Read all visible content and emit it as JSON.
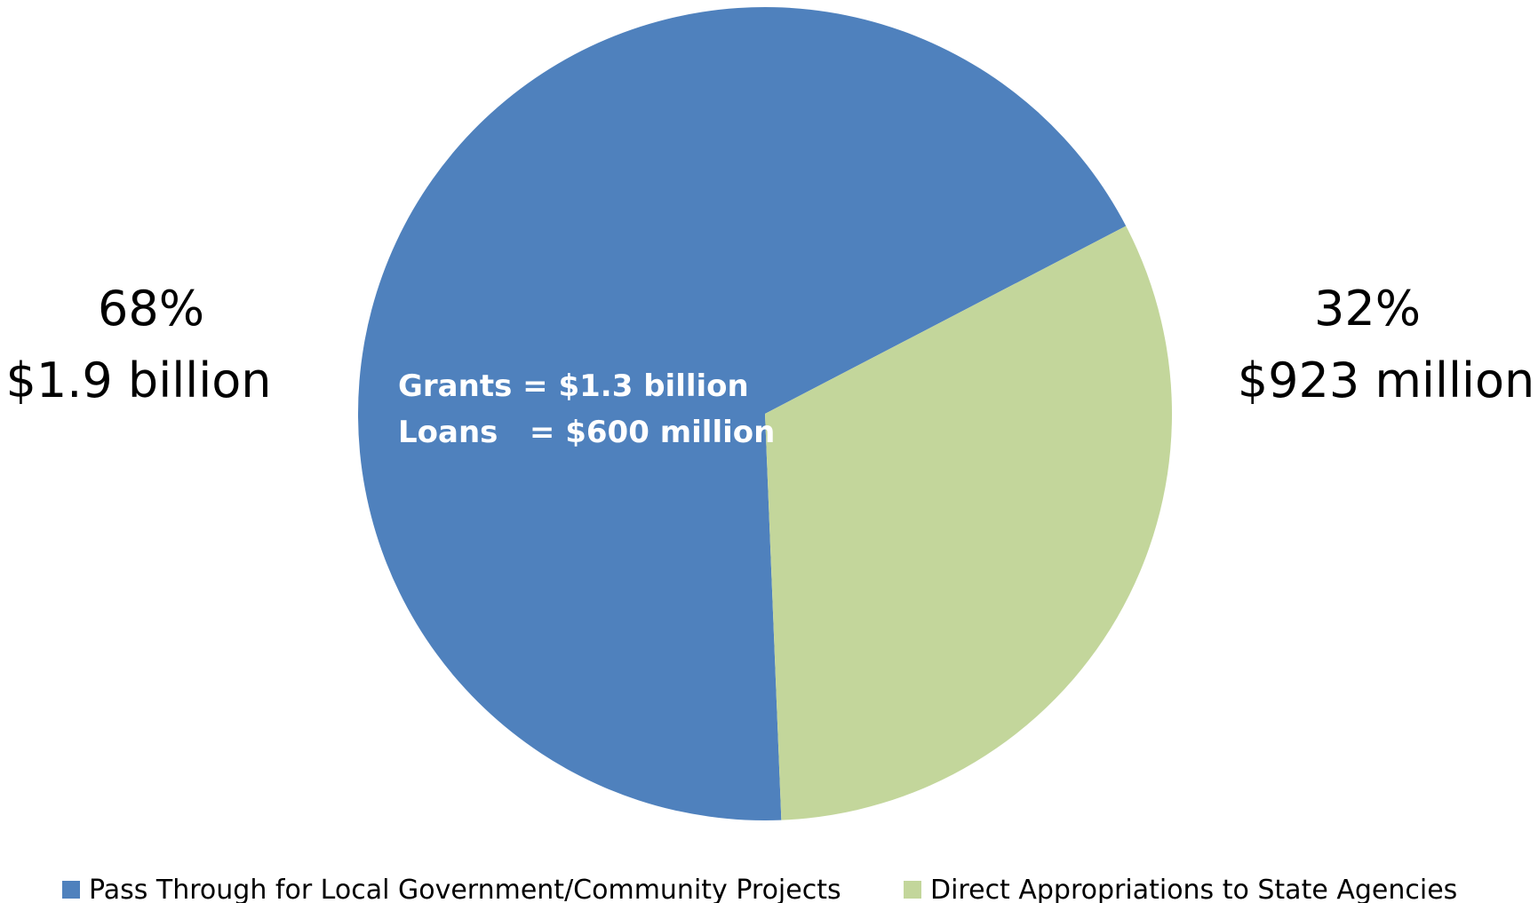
{
  "chart_data": {
    "type": "pie",
    "title": "",
    "slices": [
      {
        "name": "Pass Through for Local Government/Community Projects",
        "value": 68,
        "percent_label": "68%",
        "amount_label": "$1.9 billion",
        "color": "#4F81BD",
        "details": [
          "Grants = $1.3 billion",
          "Loans   = $600 million"
        ]
      },
      {
        "name": "Direct Appropriations to State Agencies",
        "value": 32,
        "percent_label": "32%",
        "amount_label": "$923 million",
        "color": "#C3D69B"
      }
    ],
    "start_angle_deg": 27.5,
    "direction": "counterclockwise",
    "legend_position": "bottom"
  }
}
